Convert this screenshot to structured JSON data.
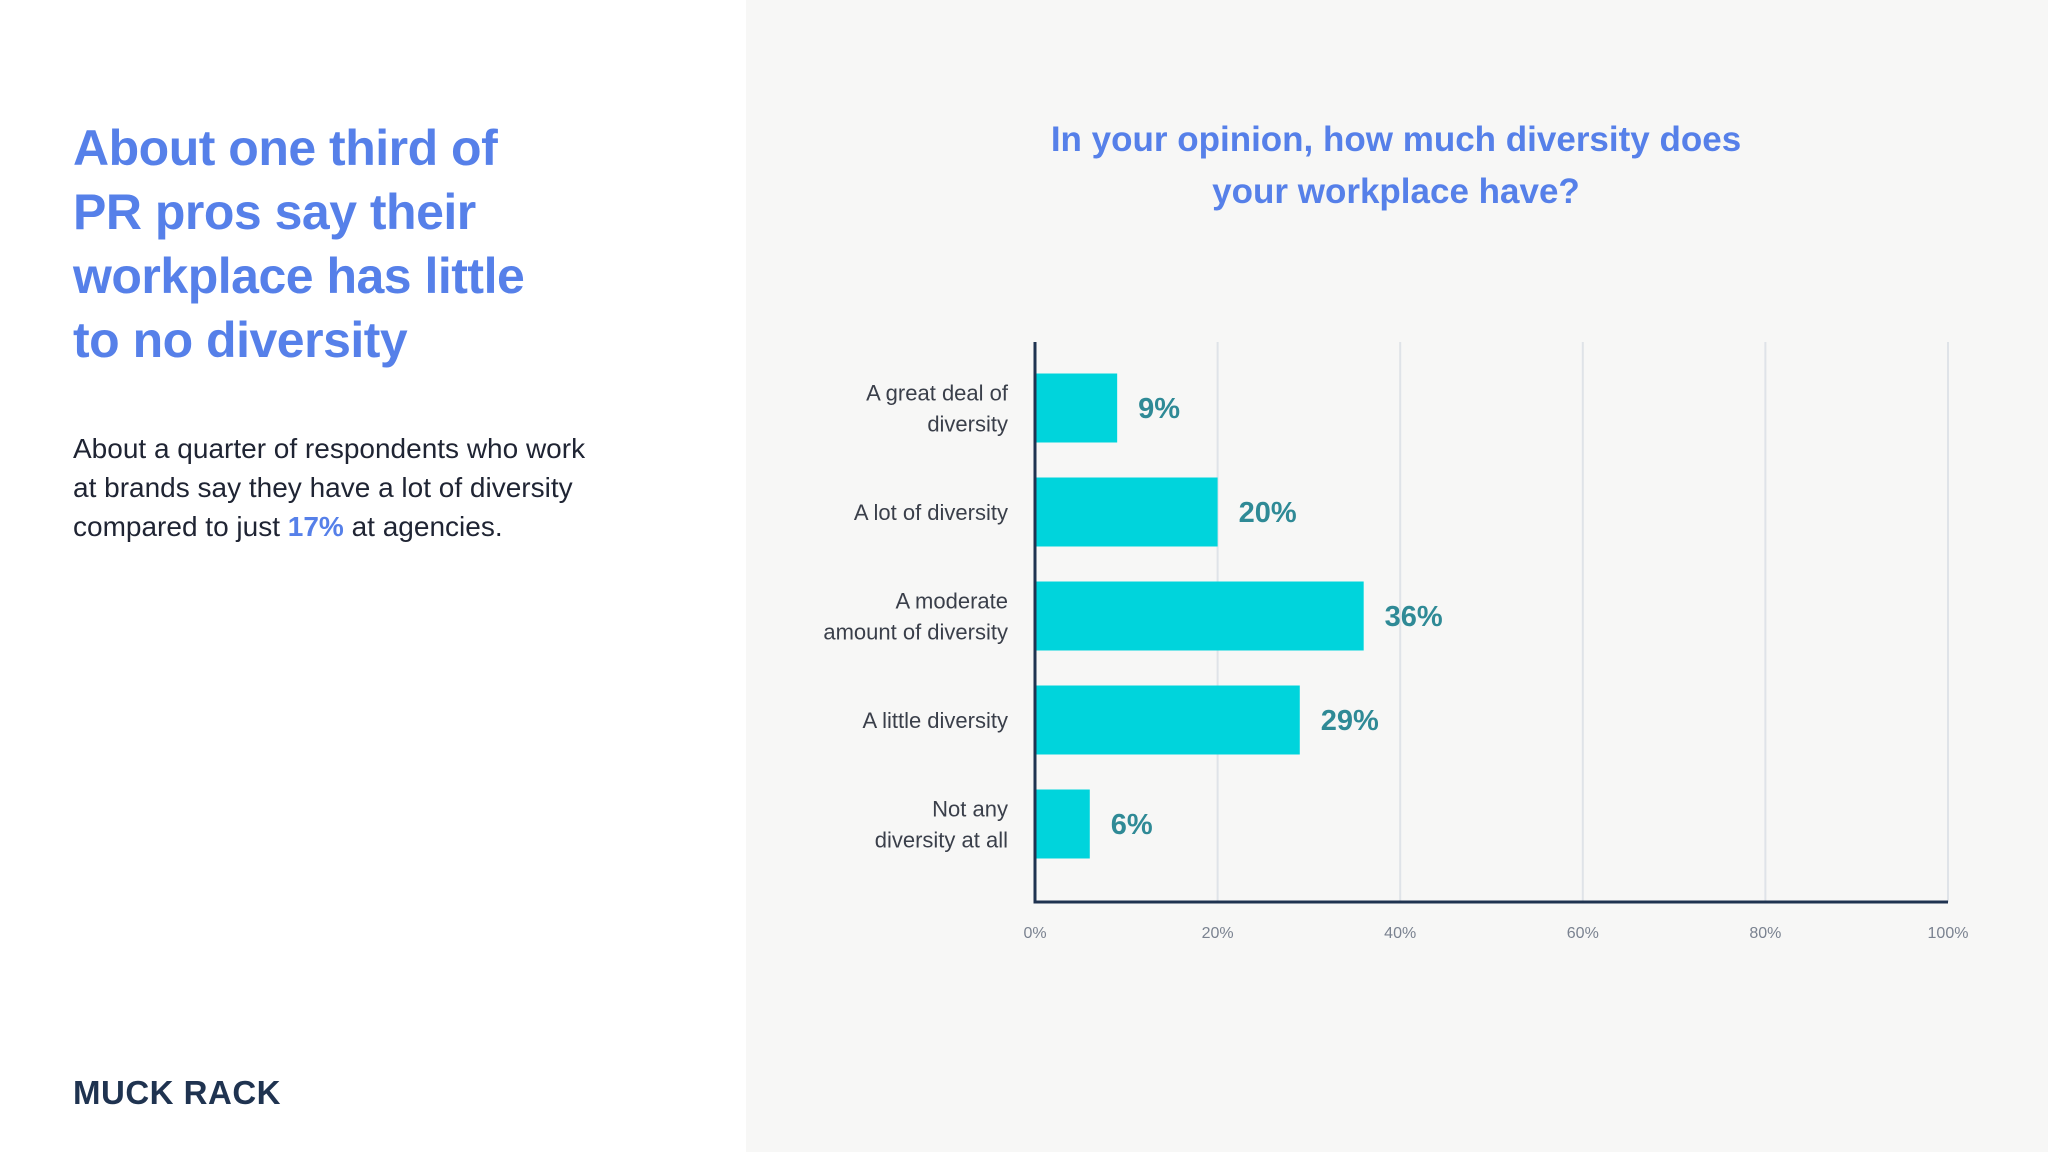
{
  "headline": {
    "lines": [
      "About one third of",
      "PR pros say their",
      "workplace has little",
      "to no diversity"
    ]
  },
  "body": {
    "line1": "About a quarter of respondents who work",
    "line2": "at brands say they have a lot of diversity",
    "line3_prefix": "compared to just ",
    "line3_highlight": "17%",
    "line3_suffix": " at agencies."
  },
  "logo": {
    "text": "MUCK RACK"
  },
  "colors": {
    "accent": "#5680e9",
    "bar": "#00d4dc",
    "value_label": "#2f8a96",
    "axis": "#1f3350",
    "grid": "#dfe3e8",
    "panel_bg": "#f7f7f6"
  },
  "chart_data": {
    "type": "bar",
    "orientation": "horizontal",
    "title_lines": [
      "In your opinion, how much diversity does",
      "your workplace have?"
    ],
    "categories": [
      [
        "A great deal of",
        "diversity"
      ],
      [
        "A lot of diversity"
      ],
      [
        "A moderate",
        "amount of diversity"
      ],
      [
        "A little diversity"
      ],
      [
        "Not any",
        "diversity at all"
      ]
    ],
    "values": [
      9,
      20,
      36,
      29,
      6
    ],
    "value_labels": [
      "9%",
      "20%",
      "36%",
      "29%",
      "6%"
    ],
    "xlim": [
      0,
      100
    ],
    "xticks": [
      0,
      20,
      40,
      60,
      80,
      100
    ],
    "xtick_labels": [
      "0%",
      "20%",
      "40%",
      "60%",
      "80%",
      "100%"
    ],
    "grid": true
  }
}
